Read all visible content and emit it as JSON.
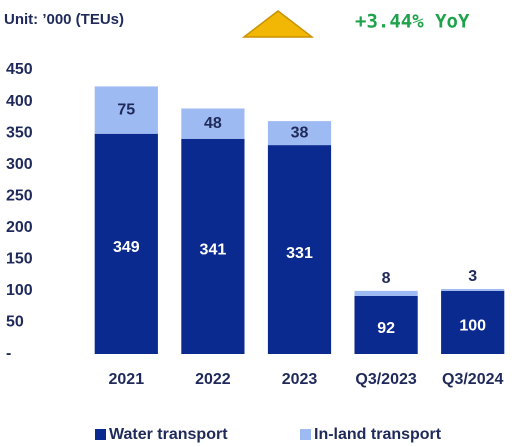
{
  "chart_data": {
    "type": "stacked_bar",
    "title": "Unit: ’000 (TEUs)",
    "annotation": "+3.44% YoY",
    "categories": [
      "2021",
      "2022",
      "2023",
      "Q3/2023",
      "Q3/2024"
    ],
    "series": [
      {
        "name": "Water transport",
        "color": "#0a2a8f",
        "values": [
          349,
          341,
          331,
          92,
          100
        ]
      },
      {
        "name": "In-land transport",
        "color": "#9dbaf2",
        "values": [
          75,
          48,
          38,
          8,
          3
        ]
      }
    ],
    "ylim": [
      0,
      450
    ],
    "yticks": [
      {
        "value": 0,
        "label": "-"
      },
      50,
      100,
      150,
      200,
      250,
      300,
      350,
      400,
      450
    ],
    "legend": "bottom"
  }
}
